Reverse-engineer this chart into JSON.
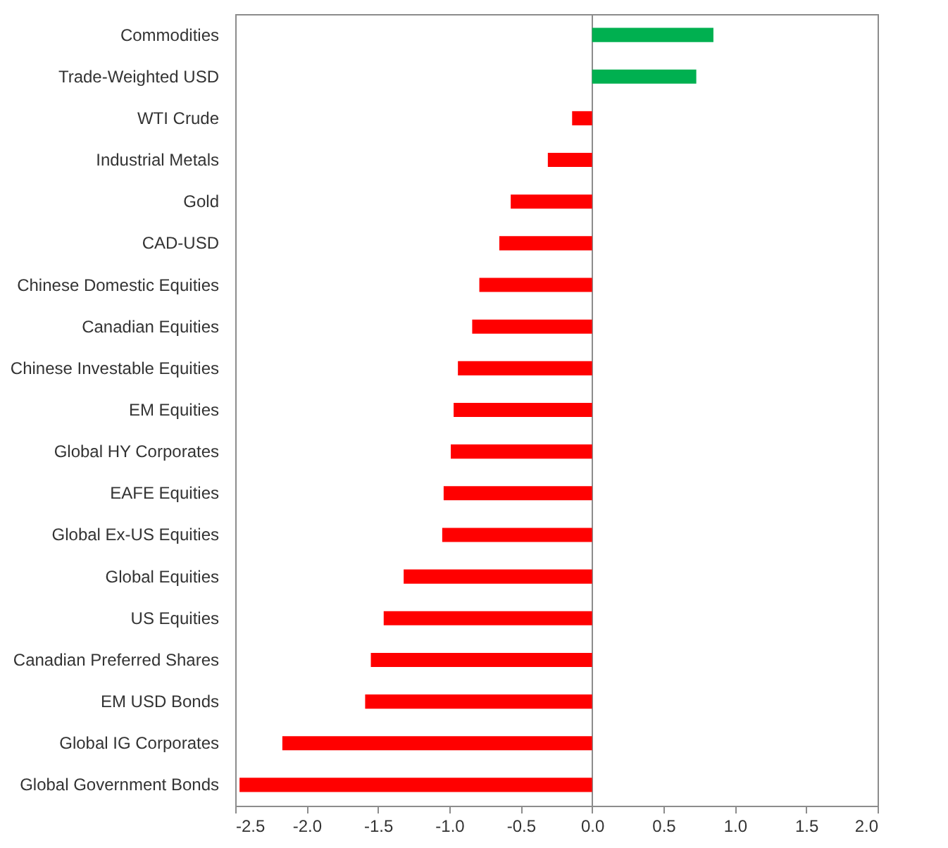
{
  "chart_data": {
    "type": "bar",
    "orientation": "horizontal",
    "categories": [
      "Commodities",
      "Trade-Weighted USD",
      "WTI Crude",
      "Industrial Metals",
      "Gold",
      "CAD-USD",
      "Chinese Domestic Equities",
      "Canadian Equities",
      "Chinese Investable Equities",
      "EM Equities",
      "Global HY Corporates",
      "EAFE Equities",
      "Global Ex-US Equities",
      "Global Equities",
      "US Equities",
      "Canadian Preferred Shares",
      "EM USD Bonds",
      "Global IG Corporates",
      "Global Government Bonds"
    ],
    "values": [
      0.85,
      0.73,
      -0.14,
      -0.31,
      -0.57,
      -0.65,
      -0.79,
      -0.84,
      -0.94,
      -0.97,
      -0.99,
      -1.04,
      -1.05,
      -1.32,
      -1.46,
      -1.55,
      -1.59,
      -2.17,
      -2.47
    ],
    "colors": [
      "#00b050",
      "#00b050",
      "#ff0000",
      "#ff0000",
      "#ff0000",
      "#ff0000",
      "#ff0000",
      "#ff0000",
      "#ff0000",
      "#ff0000",
      "#ff0000",
      "#ff0000",
      "#ff0000",
      "#ff0000",
      "#ff0000",
      "#ff0000",
      "#ff0000",
      "#ff0000",
      "#ff0000"
    ],
    "xlim": [
      -2.5,
      2.0
    ],
    "xticks": [
      {
        "value": -2.5,
        "label": "-2.5"
      },
      {
        "value": -2.0,
        "label": "-2.0"
      },
      {
        "value": -1.5,
        "label": "-1.5"
      },
      {
        "value": -1.0,
        "label": "-1.0"
      },
      {
        "value": -0.5,
        "label": "-0.5"
      },
      {
        "value": 0,
        "label": "0.0"
      },
      {
        "value": 0.5,
        "label": "0.5"
      },
      {
        "value": 1.0,
        "label": "1.0"
      },
      {
        "value": 1.5,
        "label": "1.5"
      },
      {
        "value": 2.0,
        "label": "2.0"
      }
    ]
  }
}
